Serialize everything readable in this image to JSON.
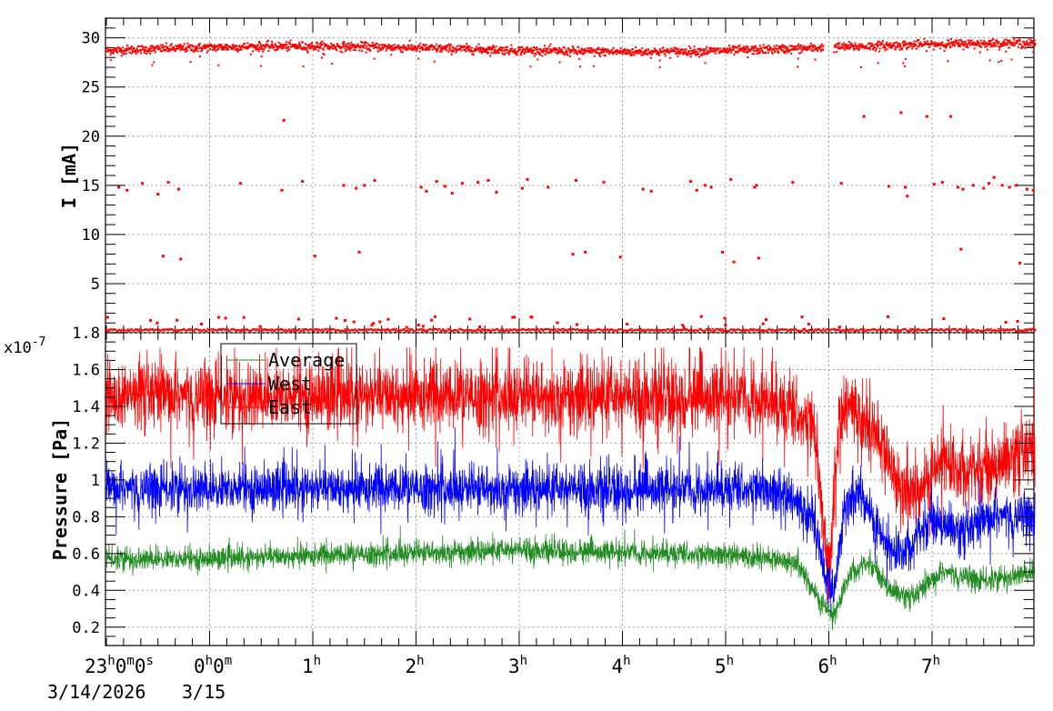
{
  "colors": {
    "current": "#ff0000",
    "average": "#228b22",
    "west": "#0000ff",
    "east": "#ff0000",
    "grid": "#a0a0a0"
  },
  "chart_data": [
    {
      "type": "scatter",
      "ylabel": "I [mA]",
      "xlabel": "",
      "ylim": [
        0,
        32
      ],
      "yticks": [
        "5",
        "10",
        "15",
        "20",
        "25",
        "30"
      ],
      "grid": true,
      "x_unit": "hours since 3/14/2026 23:00",
      "xlim": [
        0,
        9.0
      ],
      "series": [
        {
          "color": "#ff0000",
          "description_points": {
            "baseline_start": 28.8,
            "baseline_end": 29.0,
            "gap_x": [
              6.95,
              7.05
            ]
          },
          "outliers": [
            [
              0.12,
              14.8
            ],
            [
              0.2,
              14.5
            ],
            [
              0.35,
              15.2
            ],
            [
              0.5,
              14.1
            ],
            [
              0.6,
              15.3
            ],
            [
              0.7,
              14.6
            ],
            [
              0.55,
              7.8
            ],
            [
              0.72,
              7.5
            ],
            [
              1.3,
              15.2
            ],
            [
              1.7,
              14.5
            ],
            [
              1.9,
              15.4
            ],
            [
              1.72,
              21.6
            ],
            [
              2.02,
              7.8
            ],
            [
              2.3,
              15.0
            ],
            [
              2.42,
              14.7
            ],
            [
              2.5,
              15.0
            ],
            [
              2.45,
              8.2
            ],
            [
              2.6,
              15.5
            ],
            [
              3.05,
              14.8
            ],
            [
              3.1,
              14.4
            ],
            [
              3.2,
              15.4
            ],
            [
              3.28,
              14.9
            ],
            [
              3.35,
              14.2
            ],
            [
              3.45,
              15.2
            ],
            [
              3.6,
              15.3
            ],
            [
              3.7,
              15.5
            ],
            [
              3.78,
              14.3
            ],
            [
              4.03,
              14.7
            ],
            [
              4.08,
              15.6
            ],
            [
              4.28,
              14.8
            ],
            [
              4.55,
              15.5
            ],
            [
              4.52,
              8.0
            ],
            [
              4.64,
              8.2
            ],
            [
              4.82,
              15.3
            ],
            [
              4.98,
              7.7
            ],
            [
              5.2,
              14.6
            ],
            [
              5.28,
              14.4
            ],
            [
              5.66,
              15.4
            ],
            [
              5.8,
              15.0
            ],
            [
              5.72,
              14.5
            ],
            [
              5.86,
              14.8
            ],
            [
              6.05,
              15.6
            ],
            [
              5.97,
              8.2
            ],
            [
              6.08,
              7.2
            ],
            [
              6.28,
              14.8
            ],
            [
              6.3,
              15.0
            ],
            [
              6.32,
              7.6
            ],
            [
              6.65,
              15.3
            ],
            [
              7.12,
              15.2
            ],
            [
              7.34,
              22.0
            ],
            [
              7.58,
              14.9
            ],
            [
              7.7,
              22.4
            ],
            [
              7.74,
              14.8
            ],
            [
              7.76,
              13.9
            ],
            [
              7.95,
              22.0
            ],
            [
              8.02,
              15.1
            ],
            [
              8.1,
              15.3
            ],
            [
              8.18,
              22.0
            ],
            [
              8.25,
              14.8
            ],
            [
              8.3,
              14.6
            ],
            [
              8.4,
              15.0
            ],
            [
              8.5,
              14.7
            ],
            [
              8.55,
              15.2
            ],
            [
              8.6,
              15.8
            ],
            [
              8.68,
              15.0
            ],
            [
              8.75,
              14.8
            ],
            [
              8.82,
              15.0
            ],
            [
              8.92,
              14.6
            ],
            [
              8.98,
              14.5
            ],
            [
              8.28,
              8.5
            ],
            [
              8.85,
              7.1
            ]
          ]
        }
      ]
    },
    {
      "type": "line",
      "ylabel": "Pressure [Pa]",
      "xlabel": "",
      "y_multiplier_label": "x10",
      "y_multiplier_exp": "-7",
      "ylim": [
        0.1,
        1.8
      ],
      "yticks": [
        "0.2",
        "0.4",
        "0.6",
        "0.8",
        "1",
        "1.2",
        "1.4",
        "1.6",
        "1.8"
      ],
      "grid": true,
      "legend_position": "top-left",
      "x_unit": "hours since 3/14/2026 23:00",
      "xlim": [
        0,
        9.0
      ],
      "series": [
        {
          "name": "Average",
          "color": "#228b22",
          "legend_style": "line"
        },
        {
          "name": "West",
          "color": "#0000ff",
          "legend_style": "line"
        },
        {
          "name": "East",
          "color": "#ff0000",
          "legend_style": "line"
        }
      ],
      "envelope": {
        "east": [
          [
            0,
            1.45
          ],
          [
            6.3,
            1.45
          ],
          [
            6.55,
            1.4
          ],
          [
            6.85,
            1.3
          ],
          [
            6.92,
            0.9
          ],
          [
            7.0,
            0.45
          ],
          [
            7.1,
            1.3
          ],
          [
            7.2,
            1.4
          ],
          [
            7.3,
            1.35
          ],
          [
            7.5,
            1.2
          ],
          [
            7.7,
            0.95
          ],
          [
            7.9,
            0.95
          ],
          [
            8.1,
            1.1
          ],
          [
            8.4,
            1.05
          ],
          [
            8.7,
            1.1
          ],
          [
            9.0,
            1.15
          ]
        ],
        "west": [
          [
            0,
            0.95
          ],
          [
            6.3,
            0.95
          ],
          [
            6.6,
            0.9
          ],
          [
            6.85,
            0.8
          ],
          [
            6.95,
            0.5
          ],
          [
            7.05,
            0.38
          ],
          [
            7.15,
            0.85
          ],
          [
            7.3,
            0.95
          ],
          [
            7.45,
            0.75
          ],
          [
            7.6,
            0.6
          ],
          [
            7.8,
            0.65
          ],
          [
            8.0,
            0.8
          ],
          [
            8.3,
            0.7
          ],
          [
            8.6,
            0.8
          ],
          [
            9.0,
            0.8
          ]
        ],
        "average": [
          [
            0,
            0.57
          ],
          [
            1.0,
            0.57
          ],
          [
            4.0,
            0.62
          ],
          [
            5.5,
            0.6
          ],
          [
            6.3,
            0.58
          ],
          [
            6.7,
            0.55
          ],
          [
            6.9,
            0.35
          ],
          [
            7.05,
            0.25
          ],
          [
            7.2,
            0.5
          ],
          [
            7.4,
            0.55
          ],
          [
            7.6,
            0.4
          ],
          [
            7.8,
            0.35
          ],
          [
            8.1,
            0.5
          ],
          [
            8.5,
            0.45
          ],
          [
            9.0,
            0.5
          ]
        ]
      }
    }
  ],
  "x_axis": {
    "first_label": {
      "hour": "23",
      "min": "0",
      "sec": "0",
      "date": "3/14/2026"
    },
    "second_label": {
      "hour": "0",
      "min": "0",
      "date": "3/15"
    },
    "labels": [
      {
        "x": 2,
        "text": "1",
        "sup": "h"
      },
      {
        "x": 3,
        "text": "2",
        "sup": "h"
      },
      {
        "x": 4,
        "text": "3",
        "sup": "h"
      },
      {
        "x": 5,
        "text": "4",
        "sup": "h"
      },
      {
        "x": 6,
        "text": "5",
        "sup": "h"
      },
      {
        "x": 7,
        "text": "6",
        "sup": "h"
      },
      {
        "x": 8,
        "text": "7",
        "sup": "h"
      }
    ]
  }
}
